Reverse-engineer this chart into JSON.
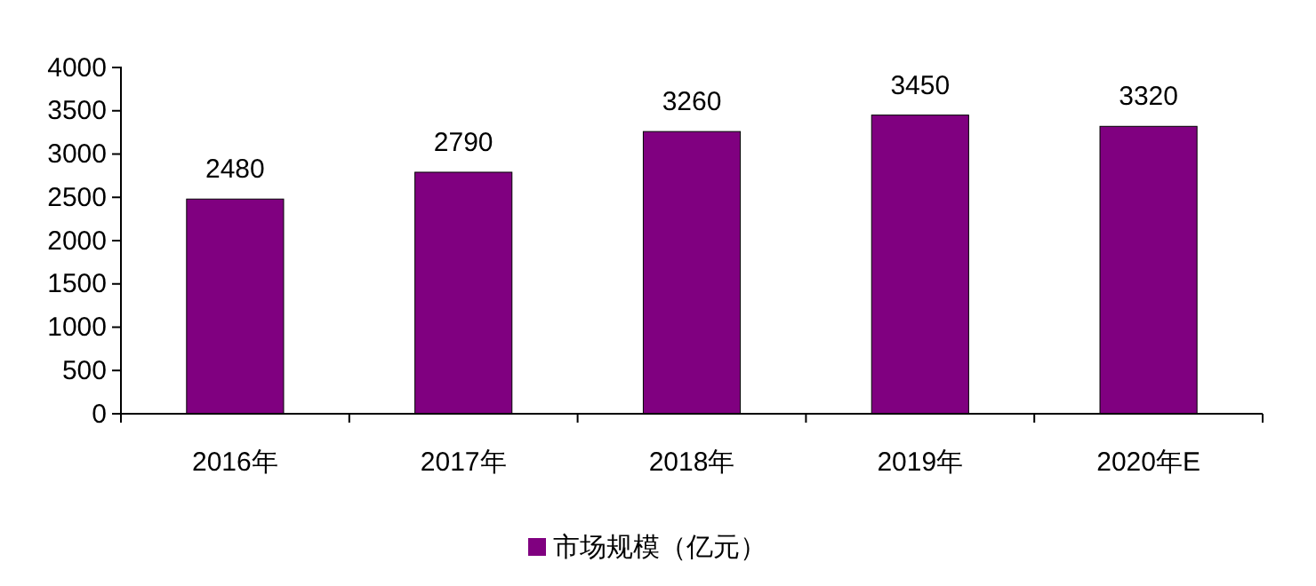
{
  "chart_data": {
    "type": "bar",
    "categories": [
      "2016年",
      "2017年",
      "2018年",
      "2019年",
      "2020年E"
    ],
    "series": [
      {
        "name": "市场规模（亿元）",
        "color": "#800080",
        "values": [
          2480,
          2790,
          3260,
          3450,
          3320
        ]
      }
    ],
    "ylim": [
      0,
      4000
    ],
    "yticks": [
      0,
      500,
      1000,
      1500,
      2000,
      2500,
      3000,
      3500,
      4000
    ],
    "data_labels": true,
    "legend": "bottom",
    "grid": false
  }
}
